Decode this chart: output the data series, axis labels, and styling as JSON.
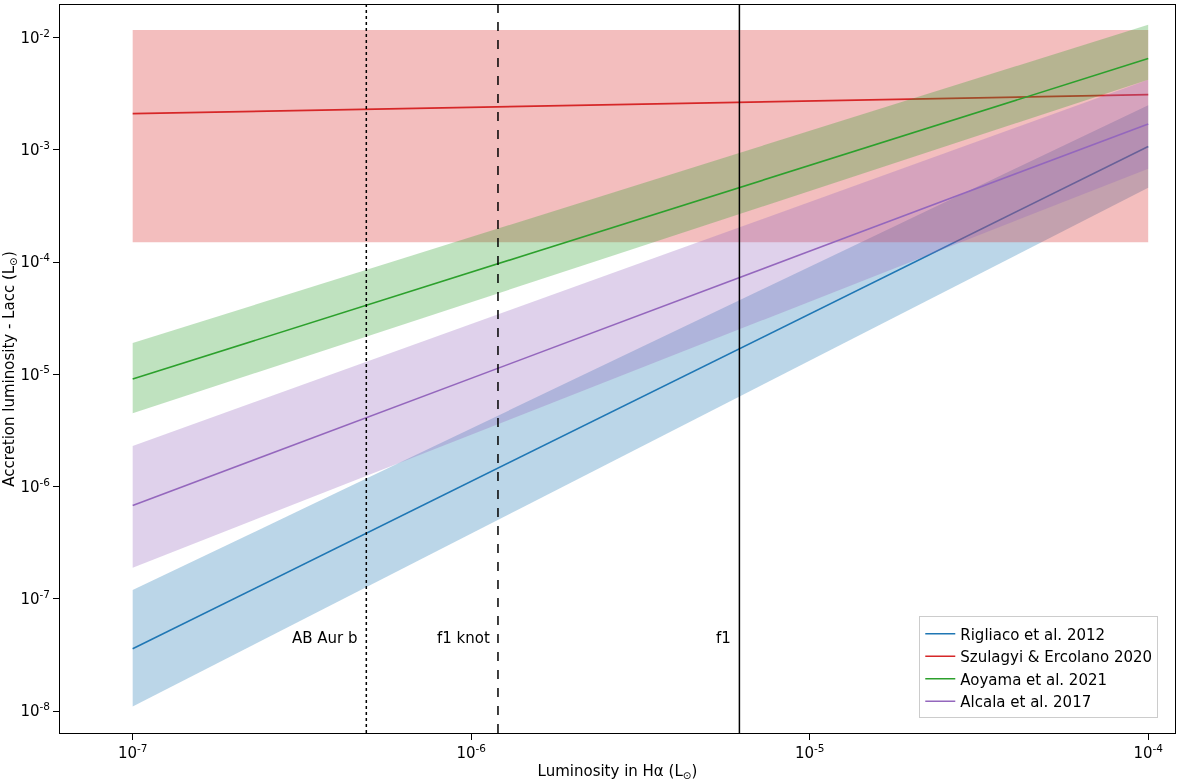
{
  "chart_data": {
    "type": "line",
    "xlabel": "Luminosity in Hα (L$_{⊙}$)",
    "ylabel": "Accretion luminosity - Lacc (L$_{⊙}$)",
    "log": "xy",
    "grid": false,
    "legend": "bottom right",
    "line_style": "solid",
    "marker": "none",
    "xlim": [
      6.1e-08,
      0.00012
    ],
    "ylim": [
      6.4e-09,
      0.0195
    ],
    "xticks": [
      {
        "value": 1e-07,
        "label": "10$^{-7}$"
      },
      {
        "value": 1e-06,
        "label": "10$^{-6}$"
      },
      {
        "value": 1e-05,
        "label": "10$^{-5}$"
      },
      {
        "value": 0.0001,
        "label": "10$^{-4}$"
      }
    ],
    "yticks": [
      {
        "value": 1e-08,
        "label": "10$^{-8}$"
      },
      {
        "value": 1e-07,
        "label": "10$^{-7}$"
      },
      {
        "value": 1e-06,
        "label": "10$^{-6}$"
      },
      {
        "value": 1e-05,
        "label": "10$^{-5}$"
      },
      {
        "value": 0.0001,
        "label": "10$^{-4}$"
      },
      {
        "value": 0.001,
        "label": "10$^{-3}$"
      },
      {
        "value": 0.01,
        "label": "10$^{-2}$"
      }
    ],
    "x": [
      1e-07,
      0.0001
    ],
    "series": [
      {
        "name": "Rigliaco et al. 2012",
        "color": "#1f77b4",
        "values": [
          3.6e-08,
          0.00107
        ],
        "lower": [
          1.1e-08,
          0.00046
        ],
        "upper": [
          1.2e-07,
          0.0025
        ]
      },
      {
        "name": "Szulagyi & Ercolano 2020",
        "color": "#d62728",
        "values": [
          0.0021,
          0.0031
        ],
        "lower": [
          0.00015,
          0.00015
        ],
        "upper": [
          0.0117,
          0.0117
        ]
      },
      {
        "name": "Aoyama et al. 2021",
        "color": "#2ca02c",
        "values": [
          9.1e-06,
          0.0065
        ],
        "lower": [
          4.5e-06,
          0.0042
        ],
        "upper": [
          1.9e-05,
          0.013
        ]
      },
      {
        "name": "Alcala et al. 2017",
        "color": "#9467bd",
        "values": [
          6.8e-07,
          0.0017
        ],
        "lower": [
          1.9e-07,
          0.00068
        ],
        "upper": [
          2.3e-06,
          0.0042
        ]
      }
    ],
    "ref_lines": [
      {
        "axis": "x",
        "value": 4.9e-07,
        "label": "AB Aur b",
        "color": "#000000",
        "line_style": "dotted"
      },
      {
        "axis": "x",
        "value": 1.2e-06,
        "label": "f1 knot",
        "color": "#000000",
        "line_style": "dashed"
      },
      {
        "axis": "x",
        "value": 6.2e-06,
        "label": "f1",
        "color": "#000000",
        "line_style": "solid"
      }
    ]
  }
}
